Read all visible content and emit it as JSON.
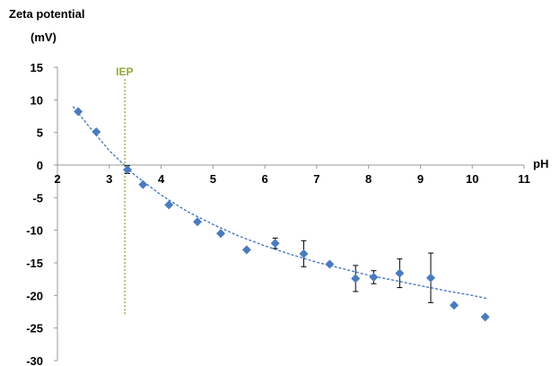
{
  "chart_data": {
    "type": "scatter",
    "ylabel_lines": [
      "Zeta potential",
      "(mV)"
    ],
    "xlabel": "pH",
    "xlim": [
      2,
      11
    ],
    "ylim": [
      -30,
      15
    ],
    "xticks": [
      2,
      3,
      4,
      5,
      6,
      7,
      8,
      9,
      10,
      11
    ],
    "yticks": [
      15,
      10,
      5,
      0,
      -5,
      -10,
      -15,
      -20,
      -25,
      -30
    ],
    "points": [
      {
        "x": 2.4,
        "y": 8.2,
        "err": 0
      },
      {
        "x": 2.75,
        "y": 5.1,
        "err": 0
      },
      {
        "x": 3.35,
        "y": -0.7,
        "err": 0.6
      },
      {
        "x": 3.65,
        "y": -3.0,
        "err": 0
      },
      {
        "x": 4.15,
        "y": -6.1,
        "err": 0
      },
      {
        "x": 4.7,
        "y": -8.7,
        "err": 0
      },
      {
        "x": 5.15,
        "y": -10.5,
        "err": 0
      },
      {
        "x": 5.65,
        "y": -13.0,
        "err": 0
      },
      {
        "x": 6.2,
        "y": -12.0,
        "err": 0.8
      },
      {
        "x": 6.75,
        "y": -13.6,
        "err": 2.0
      },
      {
        "x": 7.25,
        "y": -15.2,
        "err": 0
      },
      {
        "x": 7.75,
        "y": -17.4,
        "err": 2.0
      },
      {
        "x": 8.1,
        "y": -17.2,
        "err": 1.0
      },
      {
        "x": 8.6,
        "y": -16.6,
        "err": 2.2
      },
      {
        "x": 9.2,
        "y": -17.3,
        "err": 3.8
      },
      {
        "x": 9.65,
        "y": -21.5,
        "err": 0
      },
      {
        "x": 10.25,
        "y": -23.3,
        "err": 0
      }
    ],
    "trendline": [
      {
        "x": 2.3,
        "y": 9.0
      },
      {
        "x": 2.6,
        "y": 6.0
      },
      {
        "x": 3.0,
        "y": 2.2
      },
      {
        "x": 3.5,
        "y": -1.6
      },
      {
        "x": 4.0,
        "y": -4.6
      },
      {
        "x": 4.5,
        "y": -7.1
      },
      {
        "x": 5.0,
        "y": -9.1
      },
      {
        "x": 5.5,
        "y": -10.9
      },
      {
        "x": 6.0,
        "y": -12.4
      },
      {
        "x": 6.5,
        "y": -13.7
      },
      {
        "x": 7.0,
        "y": -14.9
      },
      {
        "x": 7.5,
        "y": -15.9
      },
      {
        "x": 8.0,
        "y": -16.9
      },
      {
        "x": 8.5,
        "y": -17.7
      },
      {
        "x": 9.0,
        "y": -18.5
      },
      {
        "x": 9.5,
        "y": -19.3
      },
      {
        "x": 10.0,
        "y": -20.0
      },
      {
        "x": 10.3,
        "y": -20.5
      }
    ],
    "iep": {
      "label": "IEP",
      "x": 3.3,
      "y_from": -23,
      "y_to": 13.2
    },
    "colors": {
      "marker": "#4a7bbf",
      "trendline": "#4a7bbf",
      "iep": "#8faa3c",
      "axis": "#999999",
      "errorbar": "#000000"
    }
  }
}
